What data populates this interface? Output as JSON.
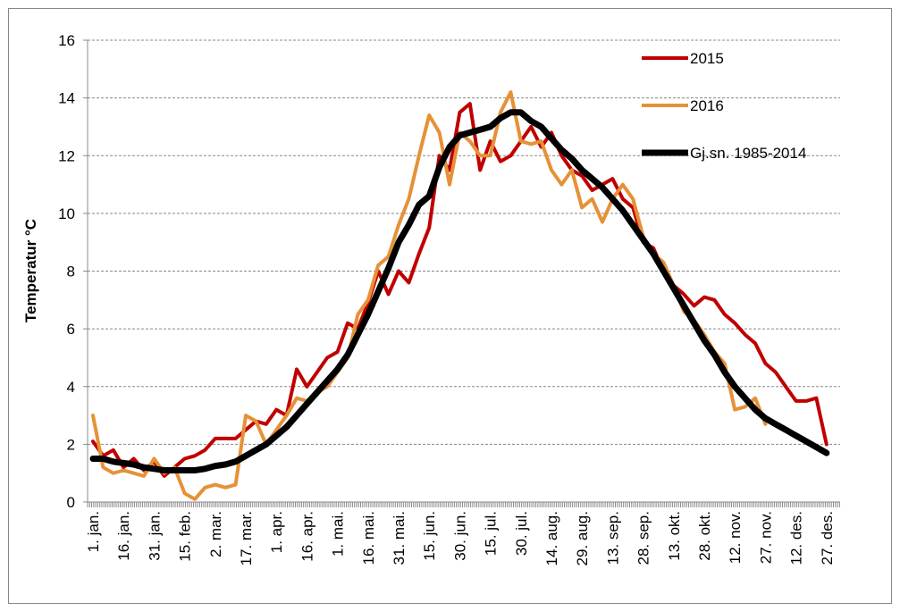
{
  "chart_data": {
    "type": "line",
    "ylabel": "Temperatur °C",
    "categories": [
      "1. jan.",
      null,
      null,
      "16. jan.",
      null,
      null,
      "31. jan.",
      null,
      null,
      "15. feb.",
      null,
      null,
      "2. mar.",
      null,
      null,
      "17. mar.",
      null,
      null,
      "1. apr.",
      null,
      null,
      "16. apr.",
      null,
      null,
      "1. mai.",
      null,
      null,
      "16. mai.",
      null,
      null,
      "31. mai.",
      null,
      null,
      "15. jun.",
      null,
      null,
      "30. jun.",
      null,
      null,
      "15. jul.",
      null,
      null,
      "30. jul.",
      null,
      null,
      "14. aug.",
      null,
      null,
      "29. aug.",
      null,
      null,
      "13. sep.",
      null,
      null,
      "28. sep.",
      null,
      null,
      "13. okt.",
      null,
      null,
      "28. okt.",
      null,
      null,
      "12. nov.",
      null,
      null,
      "27. nov.",
      null,
      null,
      "12. des.",
      null,
      null,
      "27. des."
    ],
    "series": [
      {
        "name": "2015",
        "color": "#c00000",
        "width": 4,
        "values": [
          2.1,
          1.6,
          1.8,
          1.2,
          1.5,
          1.1,
          1.4,
          0.9,
          1.2,
          1.5,
          1.6,
          1.8,
          2.2,
          2.2,
          2.2,
          2.5,
          2.8,
          2.7,
          3.2,
          3.0,
          4.6,
          4.0,
          4.5,
          5.0,
          5.2,
          6.2,
          6.0,
          6.9,
          8.0,
          7.2,
          8.0,
          7.6,
          8.6,
          9.5,
          12.0,
          11.5,
          13.5,
          13.8,
          11.5,
          12.5,
          11.8,
          12.0,
          12.5,
          13.0,
          12.3,
          12.8,
          12.0,
          11.5,
          11.3,
          10.8,
          11.0,
          11.2,
          10.5,
          10.2,
          9.0,
          8.8,
          8.0,
          7.5,
          7.2,
          6.8,
          7.1,
          7.0,
          6.5,
          6.2,
          5.8,
          5.5,
          4.8,
          4.5,
          4.0,
          3.5,
          3.5,
          3.6,
          2.0
        ]
      },
      {
        "name": "2016",
        "color": "#e69138",
        "width": 4,
        "values": [
          3.0,
          1.2,
          1.0,
          1.1,
          1.0,
          0.9,
          1.5,
          1.0,
          1.2,
          0.3,
          0.1,
          0.5,
          0.6,
          0.5,
          0.6,
          3.0,
          2.8,
          2.0,
          2.5,
          3.0,
          3.6,
          3.5,
          3.8,
          4.0,
          4.5,
          5.0,
          6.5,
          7.0,
          8.2,
          8.5,
          9.6,
          10.5,
          12.0,
          13.4,
          12.8,
          11.0,
          12.8,
          12.5,
          12.0,
          12.0,
          13.5,
          14.2,
          12.5,
          12.4,
          12.5,
          11.5,
          11.0,
          11.5,
          10.2,
          10.5,
          9.7,
          10.5,
          11.0,
          10.5,
          9.2,
          8.6,
          8.3,
          7.5,
          6.6,
          6.3,
          5.8,
          5.2,
          4.8,
          3.2,
          3.3,
          3.6,
          2.7,
          null,
          null,
          null,
          null,
          null,
          null
        ]
      },
      {
        "name": "Gj.sn. 1985-2014",
        "color": "#000000",
        "width": 7,
        "values": [
          1.5,
          1.5,
          1.4,
          1.35,
          1.3,
          1.2,
          1.15,
          1.1,
          1.1,
          1.1,
          1.1,
          1.15,
          1.25,
          1.3,
          1.4,
          1.6,
          1.8,
          2.0,
          2.3,
          2.6,
          3.0,
          3.4,
          3.8,
          4.2,
          4.6,
          5.1,
          5.8,
          6.5,
          7.3,
          8.1,
          9.0,
          9.6,
          10.3,
          10.6,
          11.6,
          12.3,
          12.7,
          12.8,
          12.9,
          13.0,
          13.3,
          13.5,
          13.5,
          13.2,
          13.0,
          12.6,
          12.2,
          11.9,
          11.5,
          11.2,
          10.9,
          10.5,
          10.1,
          9.6,
          9.1,
          8.6,
          8.0,
          7.4,
          6.8,
          6.2,
          5.6,
          5.1,
          4.5,
          4.0,
          3.6,
          3.2,
          2.9,
          2.7,
          2.5,
          2.3,
          2.1,
          1.9,
          1.7
        ]
      }
    ],
    "ylim": [
      0,
      16
    ],
    "yticks": [
      0,
      2,
      4,
      6,
      8,
      10,
      12,
      14,
      16
    ],
    "grid": true,
    "legend": "upper-right"
  }
}
